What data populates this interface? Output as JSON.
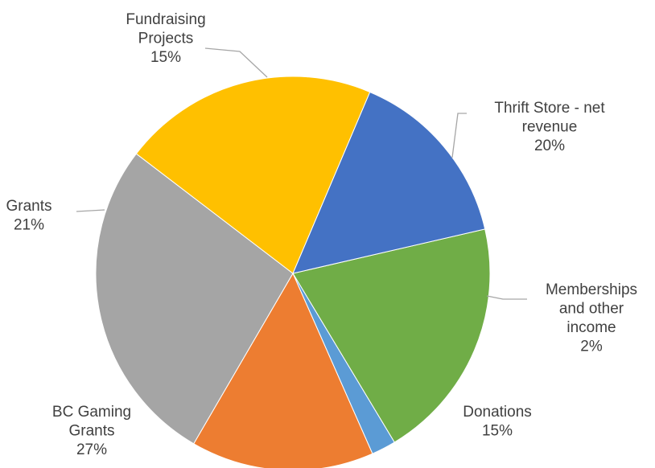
{
  "chart_data": {
    "type": "pie",
    "title": "",
    "slices": [
      {
        "label_lines": [
          "Thrift Store - net",
          "revenue"
        ],
        "percent_label": "20%",
        "value": 20,
        "color": "#70ad47"
      },
      {
        "label_lines": [
          "Memberships",
          "and other",
          "income"
        ],
        "percent_label": "2%",
        "value": 2,
        "color": "#5b9bd5"
      },
      {
        "label_lines": [
          "Donations"
        ],
        "percent_label": "15%",
        "value": 15,
        "color": "#ed7d31"
      },
      {
        "label_lines": [
          "BC Gaming",
          "Grants"
        ],
        "percent_label": "27%",
        "value": 27,
        "color": "#a5a5a5"
      },
      {
        "label_lines": [
          "Grants"
        ],
        "percent_label": "21%",
        "value": 21,
        "color": "#ffc000"
      },
      {
        "label_lines": [
          "Fundraising",
          "Projects"
        ],
        "percent_label": "15%",
        "value": 15,
        "color": "#4472c4"
      }
    ]
  }
}
